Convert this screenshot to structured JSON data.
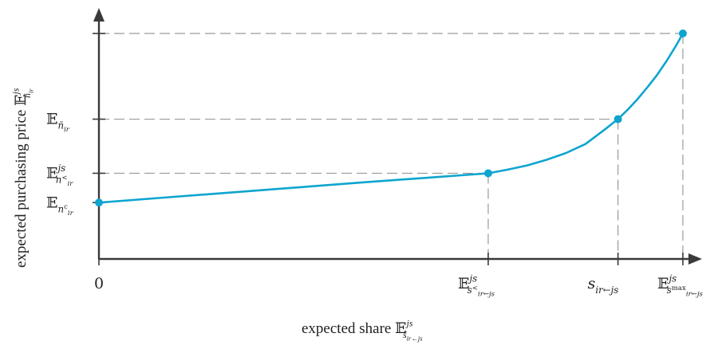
{
  "chart_data": {
    "type": "line",
    "title": "",
    "xlabel": {
      "text": "expected share ",
      "symbol": "𝔼",
      "sup": "js",
      "sub": "š",
      "sub_small": "ir←js"
    },
    "ylabel": {
      "text": "expected purchasing price ",
      "symbol": "𝔼",
      "sup": "js",
      "sub": "ň",
      "sub_small": "ir"
    },
    "xlim": [
      0,
      1
    ],
    "ylim": [
      0,
      1
    ],
    "x_ticks": [
      {
        "value": 0,
        "label": {
          "text": "0"
        }
      },
      {
        "value": 0.6,
        "label": {
          "symbol": "𝔼",
          "sup": "js",
          "sub": "s",
          "sub_sup": "<",
          "sub_small": "ir←js"
        }
      },
      {
        "value": 0.8,
        "label": {
          "symbol": "s",
          "sub": "ir←js"
        }
      },
      {
        "value": 0.9,
        "label": {
          "symbol": "𝔼",
          "sup": "js",
          "sub": "s",
          "sub_sup": "max",
          "sub_small": "ir←js"
        }
      }
    ],
    "y_ticks": [
      {
        "value": 0.25,
        "label": {
          "symbol": "𝔼",
          "sub": "n",
          "sub_sup": "c",
          "sub_small": "ir"
        }
      },
      {
        "value": 0.38,
        "label": {
          "symbol": "𝔼",
          "sup": "js",
          "sub": "n",
          "sub_sup": "<",
          "sub_small": "ir"
        }
      },
      {
        "value": 0.62,
        "label": {
          "symbol": "𝔼",
          "sub": "n̄",
          "sub_small": "ir"
        }
      },
      {
        "value": 1.0,
        "label": {
          "text": ""
        }
      }
    ],
    "series": [
      {
        "color": "#0ea5cf",
        "markers": [
          {
            "x": 0,
            "y": 0.25
          },
          {
            "x": 0.6,
            "y": 0.38
          },
          {
            "x": 0.8,
            "y": 0.62
          },
          {
            "x": 0.9,
            "y": 1.0
          }
        ],
        "curve": [
          [
            0,
            0.25
          ],
          [
            0.1,
            0.272
          ],
          [
            0.2,
            0.294
          ],
          [
            0.3,
            0.316
          ],
          [
            0.4,
            0.338
          ],
          [
            0.5,
            0.359
          ],
          [
            0.6,
            0.38
          ],
          [
            0.63,
            0.396
          ],
          [
            0.66,
            0.415
          ],
          [
            0.69,
            0.44
          ],
          [
            0.72,
            0.47
          ],
          [
            0.75,
            0.51
          ],
          [
            0.78,
            0.575
          ],
          [
            0.8,
            0.62
          ],
          [
            0.815,
            0.662
          ],
          [
            0.83,
            0.708
          ],
          [
            0.845,
            0.76
          ],
          [
            0.86,
            0.815
          ],
          [
            0.875,
            0.878
          ],
          [
            0.89,
            0.948
          ],
          [
            0.9,
            1.0
          ]
        ]
      }
    ],
    "guides_from_markers": [
      1,
      2,
      3
    ],
    "grid": false,
    "legend": "none"
  }
}
